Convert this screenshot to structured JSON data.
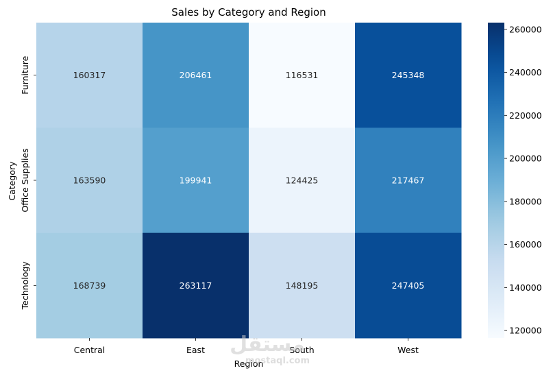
{
  "chart_data": {
    "type": "heatmap",
    "title": "Sales by Category and Region",
    "xlabel": "Region",
    "ylabel": "Category",
    "x_categories": [
      "Central",
      "East",
      "South",
      "West"
    ],
    "y_categories": [
      "Furniture",
      "Office Supplies",
      "Technology"
    ],
    "values": [
      [
        160317,
        206461,
        116531,
        245348
      ],
      [
        163590,
        199941,
        124425,
        217467
      ],
      [
        168739,
        263117,
        148195,
        247405
      ]
    ],
    "colormap": "Blues",
    "colorbar": {
      "min": 116531,
      "max": 263117,
      "ticks": [
        120000,
        140000,
        160000,
        180000,
        200000,
        220000,
        240000,
        260000
      ]
    }
  },
  "watermark": {
    "text": "مستقل",
    "sub": "mostaql.com"
  }
}
